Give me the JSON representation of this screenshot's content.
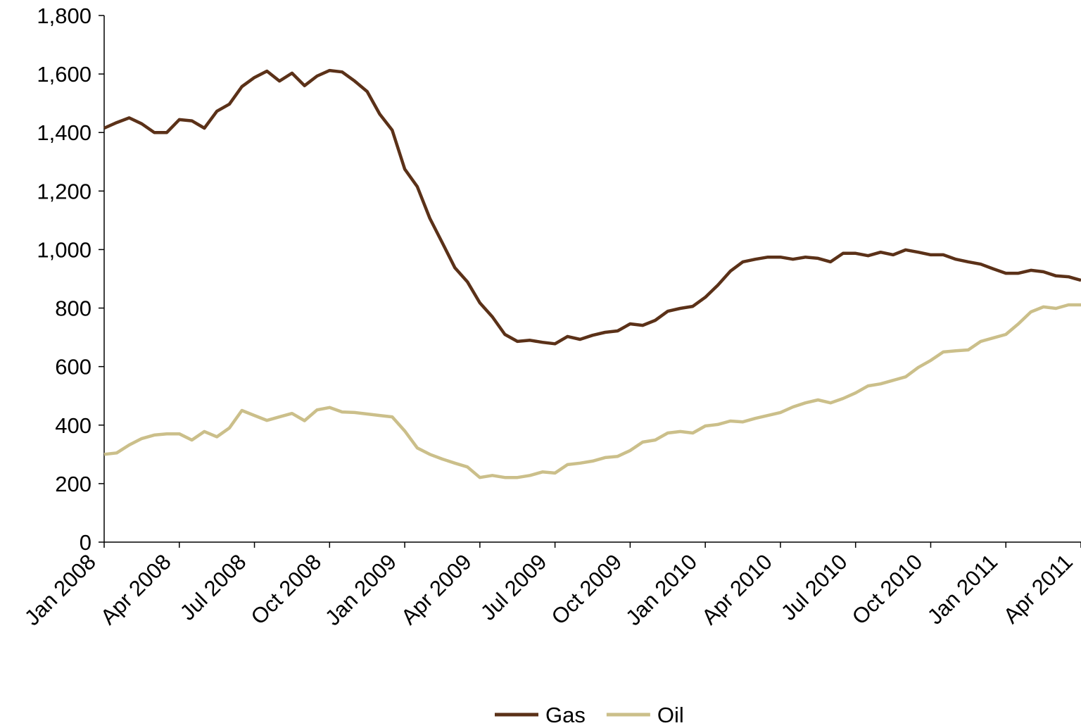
{
  "chart_data": {
    "type": "line",
    "categories": [
      "Jan 2008",
      null,
      null,
      null,
      null,
      null,
      "Apr 2008",
      null,
      null,
      null,
      null,
      null,
      "Jul 2008",
      null,
      null,
      null,
      null,
      null,
      "Oct 2008",
      null,
      null,
      null,
      null,
      null,
      "Jan 2009",
      null,
      null,
      null,
      null,
      null,
      "Apr 2009",
      null,
      null,
      null,
      null,
      null,
      "Jul 2009",
      null,
      null,
      null,
      null,
      null,
      "Oct 2009",
      null,
      null,
      null,
      null,
      null,
      "Jan 2010",
      null,
      null,
      null,
      null,
      null,
      "Apr 2010",
      null,
      null,
      null,
      null,
      null,
      "Jul 2010",
      null,
      null,
      null,
      null,
      null,
      "Oct 2010",
      null,
      null,
      null,
      null,
      null,
      "Jan 2011",
      null,
      null,
      null,
      null,
      null,
      "Apr 2011"
    ],
    "series": [
      {
        "name": "Gas",
        "color": "#5b3118",
        "values": [
          1415,
          1434,
          1450,
          1430,
          1400,
          1400,
          1444,
          1440,
          1415,
          1473,
          1497,
          1557,
          1588,
          1610,
          1576,
          1603,
          1560,
          1593,
          1612,
          1607,
          1576,
          1540,
          1463,
          1408,
          1275,
          1215,
          1107,
          1023,
          938,
          890,
          818,
          770,
          710,
          686,
          690,
          683,
          678,
          703,
          693,
          707,
          717,
          722,
          746,
          741,
          758,
          789,
          799,
          806,
          837,
          878,
          926,
          958,
          967,
          974,
          974,
          967,
          974,
          970,
          958,
          987,
          987,
          979,
          991,
          982,
          999,
          991,
          982,
          982,
          967,
          958,
          950,
          934,
          919,
          919,
          929,
          924,
          910,
          907,
          895
        ]
      },
      {
        "name": "Oil",
        "color": "#cbbf8a",
        "values": [
          300,
          305,
          332,
          354,
          366,
          370,
          370,
          349,
          378,
          360,
          390,
          450,
          433,
          416,
          428,
          440,
          415,
          452,
          460,
          445,
          443,
          438,
          433,
          428,
          380,
          322,
          300,
          284,
          270,
          257,
          221,
          228,
          221,
          221,
          228,
          240,
          236,
          265,
          270,
          277,
          289,
          293,
          313,
          342,
          349,
          373,
          378,
          373,
          397,
          402,
          414,
          411,
          423,
          433,
          443,
          462,
          476,
          486,
          476,
          491,
          510,
          534,
          541,
          553,
          565,
          597,
          621,
          650,
          654,
          657,
          686,
          698,
          710,
          746,
          787,
          804,
          799,
          811,
          811
        ]
      }
    ],
    "ylim": [
      0,
      1800
    ],
    "yticks": [
      0,
      200,
      400,
      600,
      800,
      {
        "value": 1000,
        "label": "1,000"
      },
      {
        "value": 1200,
        "label": "1,200"
      },
      {
        "value": 1400,
        "label": "1,400"
      },
      {
        "value": 1600,
        "label": "1,600"
      },
      {
        "value": 1800,
        "label": "1,800"
      }
    ],
    "grid": false,
    "legend": "bottom"
  }
}
